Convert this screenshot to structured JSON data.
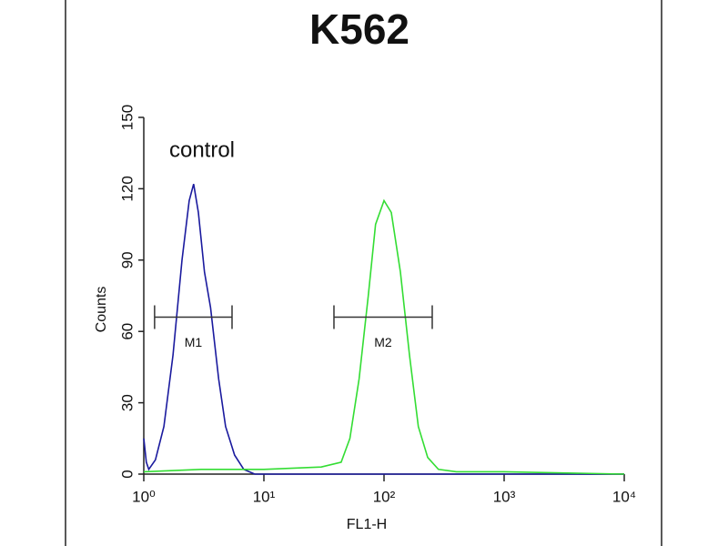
{
  "chart_data": {
    "type": "histogram-line",
    "title": "K562",
    "x_label": "FL1-H",
    "y_label": "Counts",
    "annotation": "control",
    "xscale": "log",
    "xlim": [
      1,
      10000
    ],
    "xticks": [
      {
        "value": 1,
        "label": "10⁰"
      },
      {
        "value": 10,
        "label": "10¹"
      },
      {
        "value": 100,
        "label": "10²"
      },
      {
        "value": 1000,
        "label": "10³"
      },
      {
        "value": 10000,
        "label": "10⁴"
      }
    ],
    "ylim": [
      0,
      150
    ],
    "yticks": [
      0,
      30,
      60,
      90,
      120,
      150
    ],
    "series": [
      {
        "color": "#1a1a9e",
        "x": [
          1,
          1.05,
          1.1,
          1.25,
          1.47,
          1.75,
          2.08,
          2.39,
          2.6,
          2.85,
          3.2,
          3.6,
          4.2,
          4.8,
          5.7,
          6.8,
          8.4,
          20,
          50,
          100,
          1000,
          10000
        ],
        "values": [
          15,
          5,
          2,
          6,
          20,
          50,
          90,
          115,
          122,
          110,
          85,
          70,
          40,
          20,
          8,
          2,
          0,
          0,
          0,
          0,
          0,
          0
        ]
      },
      {
        "color": "#33dd33",
        "x": [
          1,
          3,
          10,
          30,
          44,
          52,
          62,
          74,
          85,
          100,
          115,
          137,
          163,
          193,
          231,
          284,
          400,
          1000,
          10000
        ],
        "values": [
          1,
          2,
          2,
          3,
          5,
          15,
          40,
          75,
          105,
          115,
          110,
          85,
          50,
          20,
          7,
          2,
          1,
          1,
          0
        ]
      }
    ],
    "markers": [
      {
        "label": "M1",
        "x": [
          1.23,
          5.43
        ],
        "y": 66
      },
      {
        "label": "M2",
        "x": [
          38.3,
          252
        ],
        "y": 66
      }
    ]
  }
}
